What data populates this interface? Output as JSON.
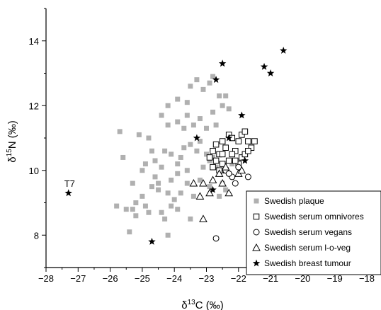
{
  "chart_data": {
    "type": "scatter",
    "xlabel_base": "δ",
    "xlabel_sup": "13",
    "xlabel_tail": "C (‰)",
    "ylabel_base": "δ",
    "ylabel_sup": "15",
    "ylabel_tail": "N (‰)",
    "xlim": [
      -28,
      -18
    ],
    "ylim": [
      7,
      15
    ],
    "x_ticks": [
      -28,
      -27,
      -26,
      -25,
      -24,
      -23,
      -22,
      -21,
      -20,
      -19,
      -18
    ],
    "y_ticks": [
      8,
      10,
      12,
      14
    ],
    "legend_position": "bottom-right",
    "annotations": [
      {
        "text": "T7",
        "x": -27.3,
        "y": 9.3
      }
    ],
    "series": [
      {
        "name": "Swedish plaque",
        "marker": "filled-square",
        "color": "#b0b0b0",
        "points": [
          [
            -25.8,
            8.9
          ],
          [
            -25.5,
            8.8
          ],
          [
            -25.3,
            8.8
          ],
          [
            -25.2,
            9.0
          ],
          [
            -25.0,
            9.2
          ],
          [
            -25.2,
            8.6
          ],
          [
            -25.4,
            8.1
          ],
          [
            -24.9,
            8.9
          ],
          [
            -24.8,
            8.7
          ],
          [
            -24.7,
            9.5
          ],
          [
            -24.5,
            9.4
          ],
          [
            -24.4,
            8.7
          ],
          [
            -24.3,
            8.5
          ],
          [
            -24.2,
            8.0
          ],
          [
            -24.1,
            8.9
          ],
          [
            -24.0,
            9.1
          ],
          [
            -23.9,
            8.8
          ],
          [
            -23.8,
            9.3
          ],
          [
            -23.6,
            9.6
          ],
          [
            -23.5,
            8.5
          ],
          [
            -25.6,
            10.4
          ],
          [
            -25.0,
            10.0
          ],
          [
            -24.9,
            10.2
          ],
          [
            -24.6,
            10.3
          ],
          [
            -24.4,
            10.1
          ],
          [
            -24.3,
            10.6
          ],
          [
            -24.1,
            10.5
          ],
          [
            -23.9,
            10.2
          ],
          [
            -23.8,
            10.4
          ],
          [
            -23.7,
            10.7
          ],
          [
            -23.5,
            10.8
          ],
          [
            -23.3,
            10.6
          ],
          [
            -23.2,
            10.9
          ],
          [
            -23.0,
            10.5
          ],
          [
            -22.9,
            10.3
          ],
          [
            -22.8,
            10.4
          ],
          [
            -22.7,
            10.1
          ],
          [
            -22.6,
            10.0
          ],
          [
            -25.7,
            11.2
          ],
          [
            -25.1,
            11.1
          ],
          [
            -24.8,
            11.0
          ],
          [
            -24.4,
            11.7
          ],
          [
            -24.2,
            11.4
          ],
          [
            -23.9,
            11.5
          ],
          [
            -23.7,
            11.3
          ],
          [
            -23.6,
            11.7
          ],
          [
            -23.4,
            11.4
          ],
          [
            -23.2,
            11.6
          ],
          [
            -23.0,
            11.3
          ],
          [
            -22.8,
            11.8
          ],
          [
            -22.7,
            11.4
          ],
          [
            -22.5,
            12.0
          ],
          [
            -22.4,
            12.3
          ],
          [
            -22.3,
            11.9
          ],
          [
            -23.5,
            12.6
          ],
          [
            -23.3,
            12.8
          ],
          [
            -23.1,
            12.5
          ],
          [
            -22.9,
            12.7
          ],
          [
            -22.8,
            12.9
          ],
          [
            -22.6,
            12.3
          ],
          [
            -23.9,
            12.2
          ],
          [
            -24.2,
            12.0
          ],
          [
            -23.6,
            12.1
          ],
          [
            -24.6,
            9.8
          ],
          [
            -24.5,
            9.6
          ],
          [
            -24.2,
            9.3
          ],
          [
            -23.9,
            9.9
          ],
          [
            -23.6,
            10.0
          ],
          [
            -23.2,
            9.7
          ],
          [
            -22.9,
            9.5
          ],
          [
            -22.6,
            9.2
          ],
          [
            -22.5,
            9.6
          ],
          [
            -22.4,
            9.4
          ],
          [
            -22.3,
            9.9
          ],
          [
            -22.2,
            10.2
          ],
          [
            -25.3,
            9.6
          ],
          [
            -24.1,
            9.7
          ],
          [
            -23.4,
            9.2
          ],
          [
            -24.7,
            10.6
          ],
          [
            -23.1,
            10.1
          ]
        ]
      },
      {
        "name": "Swedish serum omnivores",
        "marker": "open-square",
        "color": "#000000",
        "points": [
          [
            -22.8,
            10.6
          ],
          [
            -22.7,
            10.8
          ],
          [
            -22.6,
            10.5
          ],
          [
            -22.5,
            10.9
          ],
          [
            -22.4,
            10.7
          ],
          [
            -22.3,
            11.1
          ],
          [
            -22.2,
            11.0
          ],
          [
            -22.1,
            10.6
          ],
          [
            -22.0,
            10.9
          ],
          [
            -21.9,
            11.1
          ],
          [
            -21.8,
            11.2
          ],
          [
            -21.7,
            10.9
          ],
          [
            -21.6,
            10.7
          ],
          [
            -21.5,
            10.9
          ],
          [
            -21.9,
            10.4
          ],
          [
            -22.0,
            10.2
          ],
          [
            -22.2,
            10.5
          ],
          [
            -22.3,
            10.3
          ],
          [
            -22.5,
            10.2
          ],
          [
            -22.6,
            10.0
          ],
          [
            -22.7,
            10.3
          ],
          [
            -22.8,
            10.1
          ],
          [
            -22.4,
            10.0
          ],
          [
            -22.1,
            10.3
          ],
          [
            -21.8,
            10.5
          ],
          [
            -21.7,
            10.6
          ],
          [
            -22.9,
            10.4
          ],
          [
            -22.5,
            10.5
          ]
        ]
      },
      {
        "name": "Swedish serum vegans",
        "marker": "open-circle",
        "color": "#000000",
        "points": [
          [
            -22.7,
            7.9
          ],
          [
            -22.1,
            9.6
          ],
          [
            -21.7,
            9.8
          ],
          [
            -22.4,
            10.0
          ],
          [
            -22.2,
            9.8
          ],
          [
            -22.0,
            10.1
          ],
          [
            -22.3,
            9.9
          ]
        ]
      },
      {
        "name": "Swedish serum l-o-veg",
        "marker": "open-triangle",
        "color": "#000000",
        "points": [
          [
            -23.4,
            9.6
          ],
          [
            -23.1,
            9.6
          ],
          [
            -23.2,
            9.2
          ],
          [
            -22.8,
            9.7
          ],
          [
            -22.9,
            9.3
          ],
          [
            -22.5,
            9.6
          ],
          [
            -22.3,
            9.3
          ],
          [
            -22.0,
            9.9
          ],
          [
            -21.9,
            10.0
          ],
          [
            -23.1,
            8.5
          ],
          [
            -22.6,
            9.9
          ],
          [
            -22.4,
            10.1
          ]
        ]
      },
      {
        "name": "Swedish breast tumour",
        "marker": "star",
        "color": "#000000",
        "points": [
          [
            -27.3,
            9.3
          ],
          [
            -24.7,
            7.8
          ],
          [
            -23.3,
            11.0
          ],
          [
            -22.8,
            9.4
          ],
          [
            -22.7,
            12.8
          ],
          [
            -22.5,
            13.3
          ],
          [
            -22.3,
            11.0
          ],
          [
            -21.9,
            11.7
          ],
          [
            -21.8,
            10.3
          ],
          [
            -21.2,
            13.2
          ],
          [
            -21.0,
            13.0
          ],
          [
            -20.6,
            13.7
          ]
        ]
      }
    ]
  }
}
